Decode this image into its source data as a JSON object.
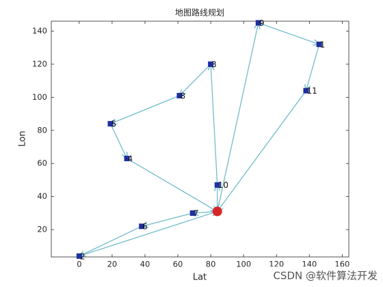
{
  "chart_data": {
    "type": "route",
    "title": "地图路线规划",
    "x_label": "Lat",
    "y_label": "Lon",
    "x": [
      84,
      146,
      0,
      80,
      29,
      19,
      38,
      69,
      61,
      109,
      84,
      138
    ],
    "values": [
      31,
      132,
      4,
      120,
      63,
      84,
      22,
      30,
      101,
      145,
      47,
      104
    ],
    "labels": [
      null,
      "1",
      "2",
      "3",
      "4",
      "5",
      "6",
      "7",
      "8",
      "9",
      "10",
      "11"
    ],
    "routes": [
      [
        0,
        9,
        1,
        11,
        0
      ],
      [
        0,
        10,
        3,
        8,
        5,
        4,
        0
      ],
      [
        0,
        7,
        6,
        2,
        0
      ]
    ],
    "depot_color": "#d62728",
    "point_color": "#1f2f9f",
    "route_color": "#72bccb",
    "xlim": [
      -17,
      164
    ],
    "ylim": [
      3.5,
      146
    ],
    "xticks": [
      0,
      20,
      40,
      60,
      80,
      100,
      120,
      140,
      160
    ],
    "yticks": [
      20,
      40,
      60,
      80,
      100,
      120,
      140
    ]
  },
  "watermark": "CSDN @软件算法开发"
}
